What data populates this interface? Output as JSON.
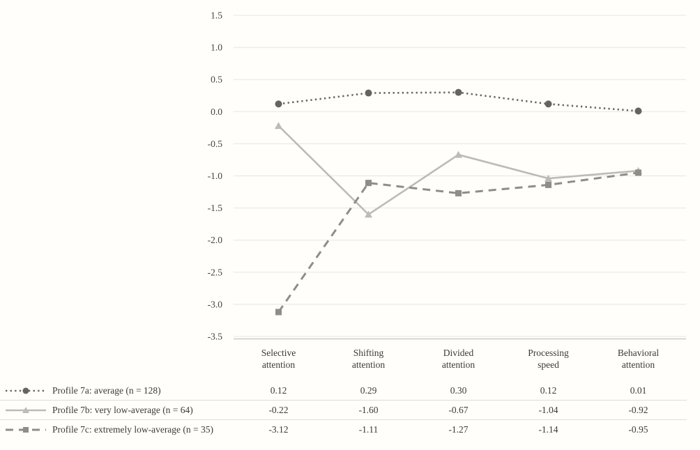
{
  "chart_data": {
    "type": "line",
    "title": "",
    "xlabel": "",
    "ylabel": "",
    "grid": true,
    "legend_position": "bottom-left-table",
    "categories": [
      [
        "Selective",
        "attention"
      ],
      [
        "Shifting",
        "attention"
      ],
      [
        "Divided",
        "attention"
      ],
      [
        "Processing",
        "speed"
      ],
      [
        "Behavioral",
        "attention"
      ]
    ],
    "y_axis": {
      "min": -3.5,
      "max": 1.5,
      "ticks": [
        "1.5",
        "1.0",
        "0.5",
        "0.0",
        "-0.5",
        "-1.0",
        "-1.5",
        "-2.0",
        "-2.5",
        "-3.0",
        "-3.5"
      ]
    },
    "series": [
      {
        "name": "Profile 7a: average (n = 128)",
        "values": [
          "0.12",
          "0.29",
          "0.30",
          "0.12",
          "0.01"
        ],
        "color": "#666460",
        "line_style": "dotted",
        "marker": "circle"
      },
      {
        "name": "Profile 7b: very low-average (n = 64)",
        "values": [
          "-0.22",
          "-1.60",
          "-0.67",
          "-1.04",
          "-0.92"
        ],
        "color": "#bdbbb6",
        "line_style": "solid",
        "marker": "triangle"
      },
      {
        "name": "Profile 7c: extremely low-average (n = 35)",
        "values": [
          "-3.12",
          "-1.11",
          "-1.27",
          "-1.14",
          "-0.95"
        ],
        "color": "#8f8d88",
        "line_style": "dashed",
        "marker": "square"
      }
    ]
  },
  "colors": {
    "background": "#fffefa",
    "gridline": "#e7e5df",
    "axis_line": "#c6c4be",
    "separator": "#dfddd7",
    "text": "#3c3a34"
  }
}
